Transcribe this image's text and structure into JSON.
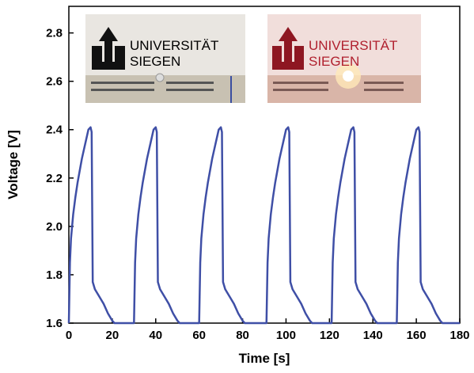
{
  "chart_data": {
    "type": "line",
    "xlabel": "Time [s]",
    "ylabel": "Voltage [V]",
    "annotations": [
      "UNIVERSITÄT",
      "SIEGEN",
      "UNIVERSITÄT",
      "SIEGEN"
    ],
    "xlim": [
      0,
      180
    ],
    "ylim": [
      1.6,
      2.91
    ],
    "xticks": [
      0,
      20,
      40,
      60,
      80,
      100,
      120,
      140,
      160,
      180
    ],
    "yticks": [
      1.6,
      1.8,
      {
        "value": 2,
        "label": "2.0"
      },
      2.2,
      2.4,
      2.6,
      2.8
    ],
    "x": [
      0,
      0.5,
      1,
      2,
      3,
      4,
      5,
      6,
      7,
      8,
      9,
      10,
      10.5,
      11,
      12,
      14,
      16,
      18,
      20,
      21,
      30,
      30.5,
      31,
      32,
      33,
      34,
      35,
      36,
      37,
      38,
      39,
      40,
      40.5,
      41,
      42,
      44,
      46,
      48,
      50,
      51,
      60,
      60.5,
      61,
      62,
      63,
      64,
      65,
      66,
      67,
      68,
      69,
      70,
      70.5,
      71,
      72,
      74,
      76,
      78,
      80,
      81,
      91,
      91.5,
      92,
      93,
      94,
      95,
      96,
      97,
      98,
      99,
      100,
      101,
      101.5,
      102,
      103,
      105,
      107,
      109,
      111,
      112,
      121,
      121.5,
      122,
      123,
      124,
      125,
      126,
      127,
      128,
      129,
      130,
      131,
      131.5,
      132,
      133,
      135,
      137,
      139,
      141,
      142,
      151,
      151.5,
      152,
      153,
      154,
      155,
      156,
      157,
      158,
      159,
      160,
      161,
      161.5,
      162,
      163,
      165,
      167,
      169,
      171,
      172,
      180
    ],
    "series": [
      {
        "color": "#3f4fa6",
        "values": [
          1.6,
          1.85,
          1.95,
          2.05,
          2.12,
          2.18,
          2.23,
          2.28,
          2.32,
          2.36,
          2.4,
          2.41,
          2.39,
          1.77,
          1.74,
          1.71,
          1.68,
          1.64,
          1.61,
          1.6,
          1.6,
          1.85,
          1.95,
          2.05,
          2.12,
          2.18,
          2.23,
          2.28,
          2.32,
          2.36,
          2.4,
          2.41,
          2.39,
          1.77,
          1.74,
          1.71,
          1.68,
          1.64,
          1.61,
          1.6,
          1.6,
          1.85,
          1.95,
          2.05,
          2.12,
          2.18,
          2.23,
          2.28,
          2.32,
          2.36,
          2.4,
          2.41,
          2.39,
          1.77,
          1.74,
          1.71,
          1.68,
          1.64,
          1.61,
          1.6,
          1.6,
          1.85,
          1.95,
          2.05,
          2.12,
          2.18,
          2.23,
          2.28,
          2.32,
          2.36,
          2.4,
          2.41,
          2.39,
          1.77,
          1.74,
          1.71,
          1.68,
          1.64,
          1.61,
          1.6,
          1.6,
          1.85,
          1.95,
          2.05,
          2.12,
          2.18,
          2.23,
          2.28,
          2.32,
          2.36,
          2.4,
          2.41,
          2.39,
          1.77,
          1.74,
          1.71,
          1.68,
          1.64,
          1.61,
          1.6,
          1.6,
          1.85,
          1.95,
          2.05,
          2.12,
          2.18,
          2.23,
          2.28,
          2.32,
          2.36,
          2.4,
          2.41,
          2.39,
          1.77,
          1.74,
          1.71,
          1.68,
          1.64,
          1.61,
          1.6,
          1.6
        ]
      }
    ]
  }
}
